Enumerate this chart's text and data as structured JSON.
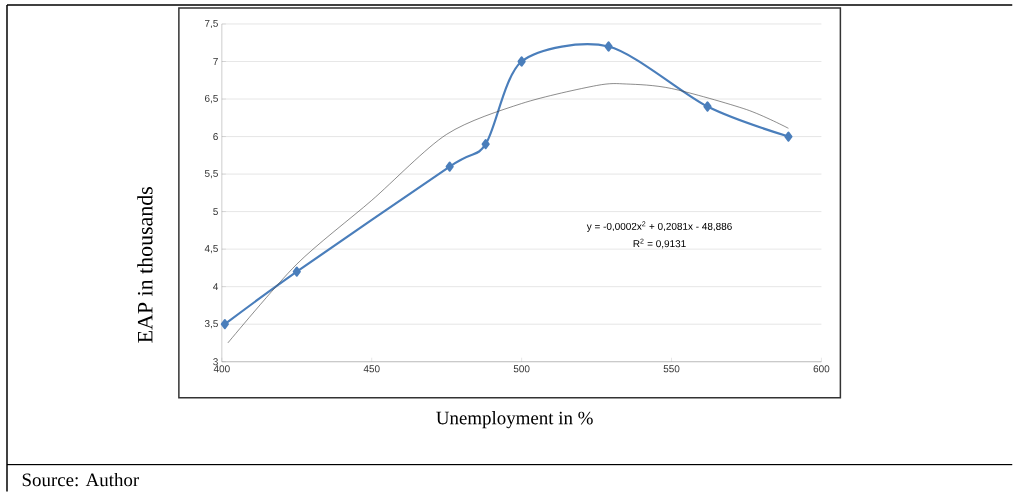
{
  "chart_data": {
    "type": "line",
    "xlabel": "Unemployment in  %",
    "ylabel": "EAP in thousands",
    "annotations": [
      "y = -0,0002x$^{2}$ + 0,2081x - 48,886",
      "R$^{2}$ = 0,9131",
      "Source: Author"
    ],
    "series": [
      {
        "color": "#4a7ebb",
        "marker": "diamond",
        "x": [
          401,
          425,
          476,
          488,
          500,
          529,
          562,
          589
        ],
        "values": [
          3.5,
          4.2,
          5.6,
          5.9,
          7,
          7.2,
          6.4,
          6.0
        ]
      },
      {
        "color": "#404040",
        "marker": "none",
        "x": [
          402,
          425,
          450,
          475,
          500,
          525,
          535,
          550,
          575,
          589
        ],
        "values": [
          3.25,
          4.3,
          5.15,
          6.03,
          6.44,
          6.68,
          6.7,
          6.64,
          6.36,
          6.11
        ]
      }
    ],
    "xlim": [
      400,
      600
    ],
    "xticks": [
      400,
      450,
      500,
      550,
      600
    ],
    "ylim": [
      3,
      7.5
    ],
    "yticks": [
      3,
      {
        "value": 3.5,
        "label": "3,5"
      },
      4,
      {
        "value": 4.5,
        "label": "4,5"
      },
      5,
      {
        "value": 5.5,
        "label": "5,5"
      },
      6,
      {
        "value": 6.5,
        "label": "6,5"
      },
      7,
      {
        "value": 7.5,
        "label": "7,5"
      }
    ],
    "grid": "y",
    "line_style": "solid"
  }
}
